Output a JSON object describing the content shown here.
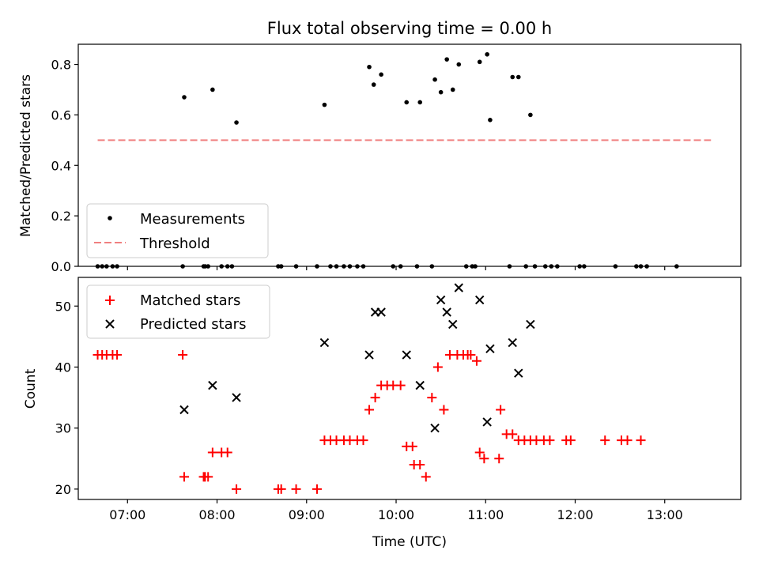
{
  "figure_title": "Flux total observing time = 0.00 h",
  "chart_data": [
    {
      "type": "scatter",
      "ylabel": "Matched/Predicted stars",
      "ylim": [
        0,
        0.88
      ],
      "yticks": [
        0.0,
        0.2,
        0.4,
        0.6,
        0.8
      ],
      "ytick_labels": [
        "0.0",
        "0.2",
        "0.4",
        "0.6",
        "0.8"
      ],
      "xlim": [
        "06:27",
        "13:51"
      ],
      "xticks": [
        "07:00",
        "08:00",
        "09:00",
        "10:00",
        "11:00",
        "12:00",
        "13:00"
      ],
      "legend_position": "lower-left",
      "series": [
        {
          "name": "Measurements",
          "color": "#000000",
          "marker": "dot",
          "points": [
            {
              "x": "06:40",
              "y": 0
            },
            {
              "x": "06:43",
              "y": 0
            },
            {
              "x": "06:46",
              "y": 0
            },
            {
              "x": "06:50",
              "y": 0
            },
            {
              "x": "06:53",
              "y": 0
            },
            {
              "x": "07:37",
              "y": 0
            },
            {
              "x": "07:38",
              "y": 0.67
            },
            {
              "x": "07:51",
              "y": 0
            },
            {
              "x": "07:52",
              "y": 0
            },
            {
              "x": "07:54",
              "y": 0
            },
            {
              "x": "07:57",
              "y": 0.7
            },
            {
              "x": "08:03",
              "y": 0
            },
            {
              "x": "08:07",
              "y": 0
            },
            {
              "x": "08:10",
              "y": 0
            },
            {
              "x": "08:13",
              "y": 0.57
            },
            {
              "x": "08:41",
              "y": 0
            },
            {
              "x": "08:43",
              "y": 0
            },
            {
              "x": "08:53",
              "y": 0
            },
            {
              "x": "09:07",
              "y": 0
            },
            {
              "x": "09:12",
              "y": 0.64
            },
            {
              "x": "09:16",
              "y": 0
            },
            {
              "x": "09:20",
              "y": 0
            },
            {
              "x": "09:25",
              "y": 0
            },
            {
              "x": "09:29",
              "y": 0
            },
            {
              "x": "09:34",
              "y": 0
            },
            {
              "x": "09:38",
              "y": 0
            },
            {
              "x": "09:42",
              "y": 0.79
            },
            {
              "x": "09:45",
              "y": 0.72
            },
            {
              "x": "09:50",
              "y": 0.76
            },
            {
              "x": "09:58",
              "y": 0
            },
            {
              "x": "10:03",
              "y": 0
            },
            {
              "x": "10:07",
              "y": 0.65
            },
            {
              "x": "10:14",
              "y": 0
            },
            {
              "x": "10:16",
              "y": 0.65
            },
            {
              "x": "10:24",
              "y": 0
            },
            {
              "x": "10:26",
              "y": 0.74
            },
            {
              "x": "10:30",
              "y": 0.69
            },
            {
              "x": "10:34",
              "y": 0.82
            },
            {
              "x": "10:38",
              "y": 0.7
            },
            {
              "x": "10:42",
              "y": 0.8
            },
            {
              "x": "10:47",
              "y": 0
            },
            {
              "x": "10:51",
              "y": 0
            },
            {
              "x": "10:53",
              "y": 0
            },
            {
              "x": "10:56",
              "y": 0.81
            },
            {
              "x": "11:01",
              "y": 0.84
            },
            {
              "x": "11:03",
              "y": 0.58
            },
            {
              "x": "11:16",
              "y": 0
            },
            {
              "x": "11:18",
              "y": 0.75
            },
            {
              "x": "11:22",
              "y": 0.75
            },
            {
              "x": "11:27",
              "y": 0
            },
            {
              "x": "11:30",
              "y": 0.6
            },
            {
              "x": "11:33",
              "y": 0
            },
            {
              "x": "11:40",
              "y": 0
            },
            {
              "x": "11:44",
              "y": 0
            },
            {
              "x": "11:48",
              "y": 0
            },
            {
              "x": "12:03",
              "y": 0
            },
            {
              "x": "12:06",
              "y": 0
            },
            {
              "x": "12:27",
              "y": 0
            },
            {
              "x": "12:41",
              "y": 0
            },
            {
              "x": "12:44",
              "y": 0
            },
            {
              "x": "12:48",
              "y": 0
            },
            {
              "x": "13:08",
              "y": 0
            }
          ]
        },
        {
          "name": "Threshold",
          "color": "#f08080",
          "style": "dashed",
          "points": [
            {
              "x": "06:40",
              "y": 0.5
            },
            {
              "x": "13:31",
              "y": 0.5
            }
          ]
        }
      ]
    },
    {
      "type": "scatter",
      "xlabel": "Time (UTC)",
      "ylabel": "Count",
      "ylim": [
        18.3,
        54.7
      ],
      "yticks": [
        20,
        30,
        40,
        50
      ],
      "ytick_labels": [
        "20",
        "30",
        "40",
        "50"
      ],
      "xlim": [
        "06:27",
        "13:51"
      ],
      "xticks": [
        "07:00",
        "08:00",
        "09:00",
        "10:00",
        "11:00",
        "12:00",
        "13:00"
      ],
      "legend_position": "upper-left",
      "series": [
        {
          "name": "Matched stars",
          "color": "#ff0000",
          "marker": "plus",
          "points": [
            {
              "x": "06:40",
              "y": 42
            },
            {
              "x": "06:43",
              "y": 42
            },
            {
              "x": "06:46",
              "y": 42
            },
            {
              "x": "06:50",
              "y": 42
            },
            {
              "x": "06:53",
              "y": 42
            },
            {
              "x": "07:37",
              "y": 42
            },
            {
              "x": "07:38",
              "y": 22
            },
            {
              "x": "07:51",
              "y": 22
            },
            {
              "x": "07:52",
              "y": 22
            },
            {
              "x": "07:54",
              "y": 22
            },
            {
              "x": "07:57",
              "y": 26
            },
            {
              "x": "08:03",
              "y": 26
            },
            {
              "x": "08:07",
              "y": 26
            },
            {
              "x": "08:13",
              "y": 20
            },
            {
              "x": "08:41",
              "y": 20
            },
            {
              "x": "08:43",
              "y": 20
            },
            {
              "x": "08:53",
              "y": 20
            },
            {
              "x": "09:07",
              "y": 20
            },
            {
              "x": "09:12",
              "y": 28
            },
            {
              "x": "09:16",
              "y": 28
            },
            {
              "x": "09:20",
              "y": 28
            },
            {
              "x": "09:25",
              "y": 28
            },
            {
              "x": "09:29",
              "y": 28
            },
            {
              "x": "09:34",
              "y": 28
            },
            {
              "x": "09:38",
              "y": 28
            },
            {
              "x": "09:42",
              "y": 33
            },
            {
              "x": "09:46",
              "y": 35
            },
            {
              "x": "09:50",
              "y": 37
            },
            {
              "x": "09:54",
              "y": 37
            },
            {
              "x": "09:58",
              "y": 37
            },
            {
              "x": "10:03",
              "y": 37
            },
            {
              "x": "10:07",
              "y": 27
            },
            {
              "x": "10:11",
              "y": 27
            },
            {
              "x": "10:12",
              "y": 24
            },
            {
              "x": "10:16",
              "y": 24
            },
            {
              "x": "10:20",
              "y": 22
            },
            {
              "x": "10:24",
              "y": 35
            },
            {
              "x": "10:28",
              "y": 40
            },
            {
              "x": "10:32",
              "y": 33
            },
            {
              "x": "10:36",
              "y": 42
            },
            {
              "x": "10:41",
              "y": 42
            },
            {
              "x": "10:45",
              "y": 42
            },
            {
              "x": "10:48",
              "y": 42
            },
            {
              "x": "10:50",
              "y": 42
            },
            {
              "x": "10:54",
              "y": 41
            },
            {
              "x": "10:56",
              "y": 26
            },
            {
              "x": "10:59",
              "y": 25
            },
            {
              "x": "11:09",
              "y": 25
            },
            {
              "x": "11:10",
              "y": 33
            },
            {
              "x": "11:14",
              "y": 29
            },
            {
              "x": "11:18",
              "y": 29
            },
            {
              "x": "11:22",
              "y": 28
            },
            {
              "x": "11:26",
              "y": 28
            },
            {
              "x": "11:30",
              "y": 28
            },
            {
              "x": "11:34",
              "y": 28
            },
            {
              "x": "11:39",
              "y": 28
            },
            {
              "x": "11:43",
              "y": 28
            },
            {
              "x": "11:54",
              "y": 28
            },
            {
              "x": "11:57",
              "y": 28
            },
            {
              "x": "12:20",
              "y": 28
            },
            {
              "x": "12:31",
              "y": 28
            },
            {
              "x": "12:35",
              "y": 28
            },
            {
              "x": "12:44",
              "y": 28
            }
          ]
        },
        {
          "name": "Predicted stars",
          "color": "#000000",
          "marker": "x",
          "points": [
            {
              "x": "07:38",
              "y": 33
            },
            {
              "x": "07:57",
              "y": 37
            },
            {
              "x": "08:13",
              "y": 35
            },
            {
              "x": "09:12",
              "y": 44
            },
            {
              "x": "09:42",
              "y": 42
            },
            {
              "x": "09:46",
              "y": 49
            },
            {
              "x": "09:50",
              "y": 49
            },
            {
              "x": "10:07",
              "y": 42
            },
            {
              "x": "10:16",
              "y": 37
            },
            {
              "x": "10:26",
              "y": 30
            },
            {
              "x": "10:30",
              "y": 51
            },
            {
              "x": "10:34",
              "y": 49
            },
            {
              "x": "10:38",
              "y": 47
            },
            {
              "x": "10:42",
              "y": 53
            },
            {
              "x": "10:56",
              "y": 51
            },
            {
              "x": "11:01",
              "y": 31
            },
            {
              "x": "11:03",
              "y": 43
            },
            {
              "x": "11:18",
              "y": 44
            },
            {
              "x": "11:22",
              "y": 39
            },
            {
              "x": "11:30",
              "y": 47
            }
          ]
        }
      ]
    }
  ]
}
